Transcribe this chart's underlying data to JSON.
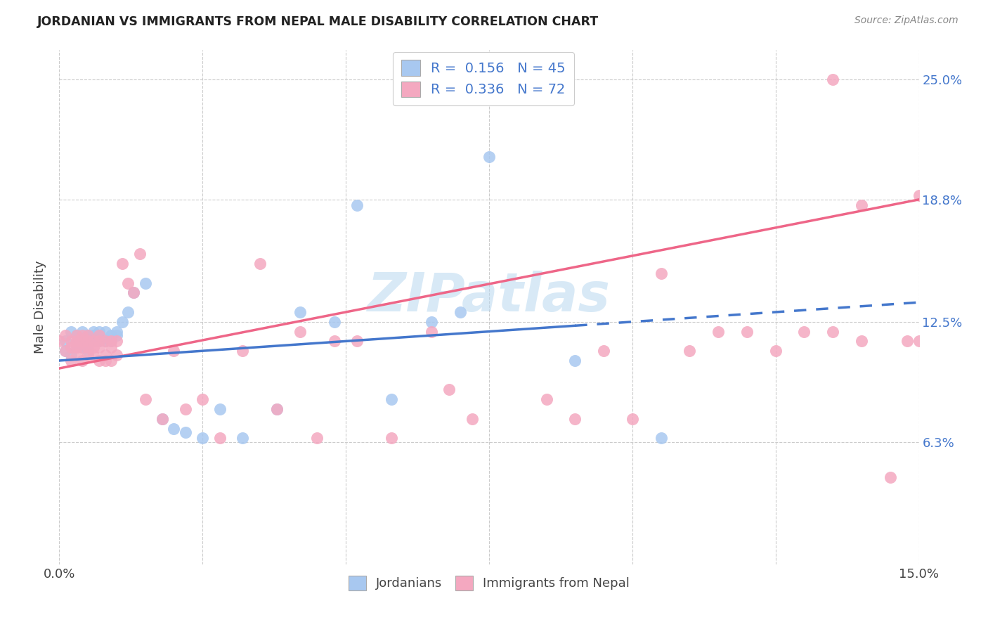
{
  "title": "JORDANIAN VS IMMIGRANTS FROM NEPAL MALE DISABILITY CORRELATION CHART",
  "source": "Source: ZipAtlas.com",
  "ylabel": "Male Disability",
  "xlim": [
    0.0,
    0.15
  ],
  "ylim": [
    0.0,
    0.265
  ],
  "xtick_positions": [
    0.0,
    0.025,
    0.05,
    0.075,
    0.1,
    0.125,
    0.15
  ],
  "xticklabels": [
    "0.0%",
    "",
    "",
    "",
    "",
    "",
    "15.0%"
  ],
  "ytick_positions": [
    0.063,
    0.125,
    0.188,
    0.25
  ],
  "ytick_labels": [
    "6.3%",
    "12.5%",
    "18.8%",
    "25.0%"
  ],
  "background_color": "#ffffff",
  "grid_color": "#cccccc",
  "watermark": "ZIPatlas",
  "jordanian_color": "#a8c8f0",
  "nepal_color": "#f4a8c0",
  "jordanian_line_color": "#4477cc",
  "nepal_line_color": "#ee6688",
  "jordanian_line_solid_end": 0.09,
  "blue_line_y0": 0.105,
  "blue_line_y1": 0.135,
  "pink_line_y0": 0.101,
  "pink_line_y1": 0.188,
  "jordanian_x": [
    0.001,
    0.001,
    0.002,
    0.002,
    0.003,
    0.003,
    0.003,
    0.004,
    0.004,
    0.004,
    0.005,
    0.005,
    0.005,
    0.006,
    0.006,
    0.006,
    0.007,
    0.007,
    0.007,
    0.008,
    0.008,
    0.009,
    0.009,
    0.01,
    0.01,
    0.011,
    0.012,
    0.013,
    0.015,
    0.018,
    0.02,
    0.022,
    0.025,
    0.028,
    0.032,
    0.038,
    0.042,
    0.048,
    0.052,
    0.058,
    0.065,
    0.07,
    0.075,
    0.09,
    0.105
  ],
  "jordanian_y": [
    0.115,
    0.11,
    0.12,
    0.108,
    0.115,
    0.112,
    0.118,
    0.112,
    0.115,
    0.12,
    0.118,
    0.115,
    0.11,
    0.12,
    0.115,
    0.118,
    0.115,
    0.12,
    0.118,
    0.115,
    0.12,
    0.115,
    0.118,
    0.12,
    0.118,
    0.125,
    0.13,
    0.14,
    0.145,
    0.075,
    0.07,
    0.068,
    0.065,
    0.08,
    0.065,
    0.08,
    0.13,
    0.125,
    0.185,
    0.085,
    0.125,
    0.13,
    0.21,
    0.105,
    0.065
  ],
  "nepal_x": [
    0.0,
    0.001,
    0.001,
    0.002,
    0.002,
    0.002,
    0.003,
    0.003,
    0.003,
    0.003,
    0.004,
    0.004,
    0.004,
    0.004,
    0.005,
    0.005,
    0.005,
    0.005,
    0.006,
    0.006,
    0.006,
    0.007,
    0.007,
    0.007,
    0.007,
    0.008,
    0.008,
    0.008,
    0.009,
    0.009,
    0.009,
    0.01,
    0.01,
    0.011,
    0.012,
    0.013,
    0.014,
    0.015,
    0.018,
    0.02,
    0.022,
    0.025,
    0.028,
    0.032,
    0.035,
    0.038,
    0.042,
    0.045,
    0.048,
    0.052,
    0.058,
    0.065,
    0.068,
    0.072,
    0.085,
    0.09,
    0.095,
    0.1,
    0.105,
    0.11,
    0.115,
    0.12,
    0.125,
    0.13,
    0.135,
    0.14,
    0.145,
    0.148,
    0.15,
    0.135,
    0.14,
    0.15
  ],
  "nepal_y": [
    0.115,
    0.11,
    0.118,
    0.105,
    0.112,
    0.115,
    0.108,
    0.115,
    0.112,
    0.118,
    0.105,
    0.115,
    0.112,
    0.118,
    0.108,
    0.115,
    0.112,
    0.118,
    0.108,
    0.115,
    0.112,
    0.105,
    0.115,
    0.112,
    0.118,
    0.108,
    0.115,
    0.105,
    0.115,
    0.105,
    0.112,
    0.108,
    0.115,
    0.155,
    0.145,
    0.14,
    0.16,
    0.085,
    0.075,
    0.11,
    0.08,
    0.085,
    0.065,
    0.11,
    0.155,
    0.08,
    0.12,
    0.065,
    0.115,
    0.115,
    0.065,
    0.12,
    0.09,
    0.075,
    0.085,
    0.075,
    0.11,
    0.075,
    0.15,
    0.11,
    0.12,
    0.12,
    0.11,
    0.12,
    0.12,
    0.115,
    0.045,
    0.115,
    0.115,
    0.25,
    0.185,
    0.19
  ]
}
